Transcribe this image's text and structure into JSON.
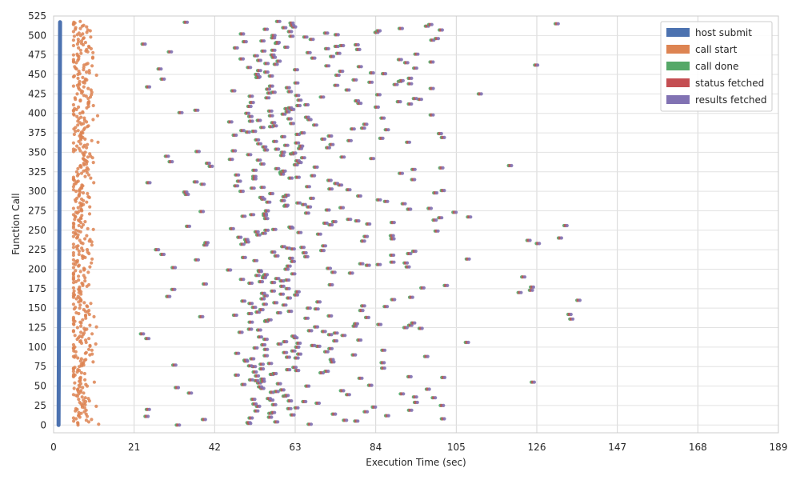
{
  "chart_data": {
    "type": "scatter",
    "title": "",
    "xlabel": "Execution Time (sec)",
    "ylabel": "Function Call",
    "xlim": [
      0,
      189
    ],
    "ylim": [
      -10,
      525
    ],
    "xticks": [
      0,
      21,
      42,
      63,
      84,
      105,
      126,
      147,
      168,
      189
    ],
    "yticks": [
      0,
      25,
      50,
      75,
      100,
      125,
      150,
      175,
      200,
      225,
      250,
      275,
      300,
      325,
      350,
      375,
      400,
      425,
      450,
      475,
      500,
      525
    ],
    "grid": true,
    "legend_position": "top-right",
    "point_count": 519,
    "series": [
      {
        "name": "host submit",
        "color": "#4c72b0",
        "style": "line",
        "points": [
          [
            1.3,
            0
          ],
          [
            1.5,
            250
          ],
          [
            1.7,
            517
          ]
        ]
      },
      {
        "name": "call start",
        "color": "#dd8452",
        "style": "scatter",
        "summary": {
          "mean_x": 7.0,
          "spread_x": 1.6,
          "min_x": 5.2,
          "max_x": 12.0
        }
      },
      {
        "name": "call done",
        "color": "#55a868",
        "style": "scatter",
        "summary": {
          "dense_x_range": [
            42,
            84
          ],
          "min_x": 18,
          "max_x": 138
        }
      },
      {
        "name": "status fetched",
        "color": "#c44e52",
        "style": "scatter",
        "summary": {
          "offset_from_call_done_x": 0.35
        }
      },
      {
        "name": "results fetched",
        "color": "#8172b3",
        "style": "scatter",
        "summary": {
          "offset_from_call_done_x": 0.8
        }
      }
    ]
  }
}
